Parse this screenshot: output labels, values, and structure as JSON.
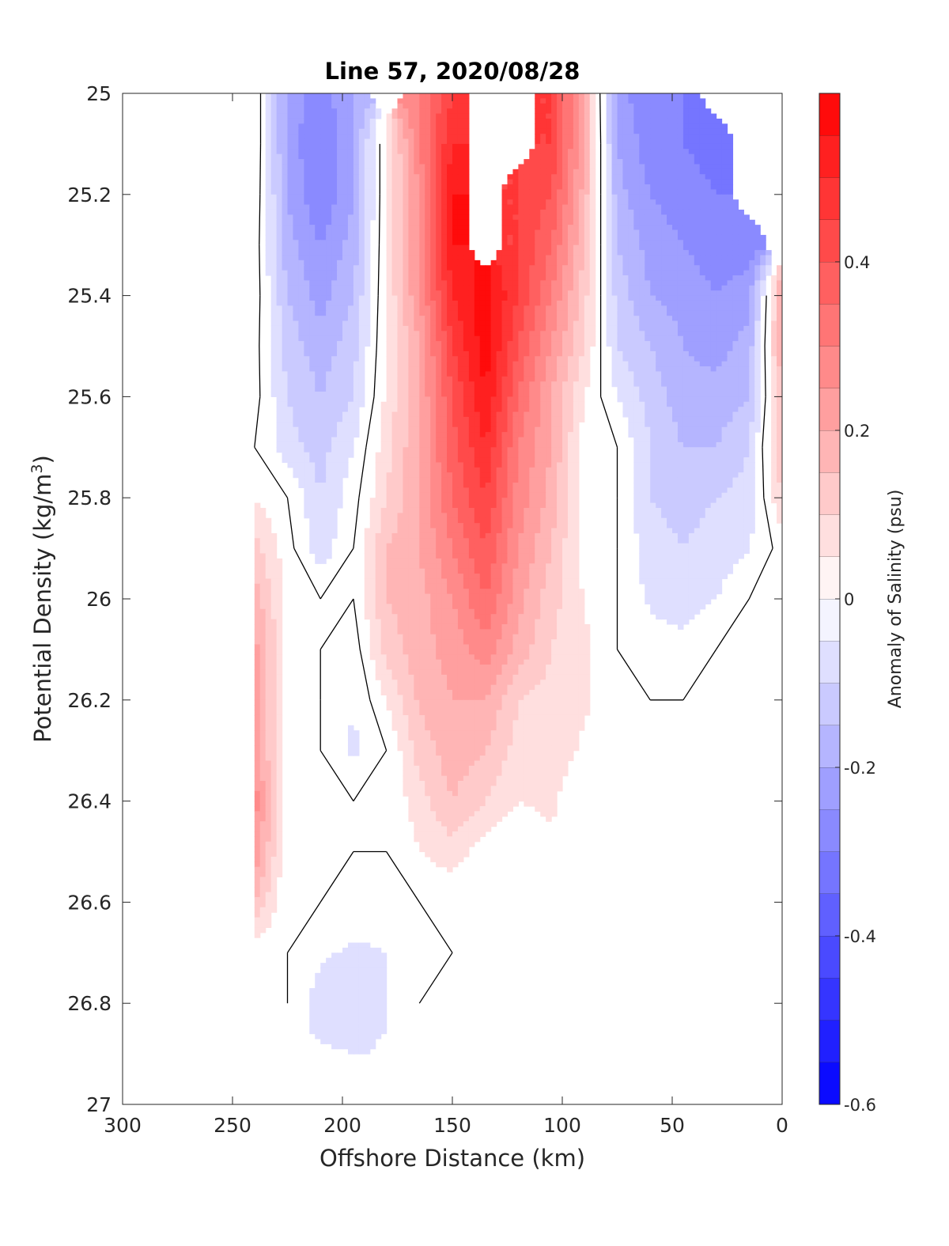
{
  "chart_data": {
    "type": "heatmap",
    "subtype": "filled contour section",
    "title": "Line 57, 2020/08/28",
    "xlabel": "Offshore Distance (km)",
    "ylabel": "Potential Density (kg/m",
    "ylabel_superscript": "3",
    "ylabel_suffix": ")",
    "colorbar_label": "Anomaly of Salinity (psu)",
    "xlim": [
      300,
      0
    ],
    "x_reversed": true,
    "ylim": [
      25,
      27
    ],
    "y_reversed": true,
    "x_ticks": [
      "300",
      "250",
      "200",
      "150",
      "100",
      "50",
      "0"
    ],
    "y_ticks": [
      "25",
      "25.2",
      "25.4",
      "25.6",
      "25.8",
      "26",
      "26.2",
      "26.4",
      "26.6",
      "26.8",
      "27"
    ],
    "colorbar_range": [
      -0.6,
      0.6
    ],
    "colorbar_ticks": [
      "-0.6",
      "-0.4",
      "-0.2",
      "0",
      "0.2",
      "0.4"
    ],
    "colorbar_levels": 24,
    "colormap": {
      "negative": "#0000ff",
      "zero": "#ffffff",
      "positive": "#ff0000"
    },
    "zero_contour_color": "#000000",
    "grid": false,
    "nodes_x_km": [
      240,
      225,
      210,
      195,
      180,
      165,
      150,
      135,
      120,
      105,
      90,
      75,
      60,
      45,
      30,
      15,
      0
    ],
    "nodes_y_sigma": [
      25.0,
      25.1,
      25.2,
      25.3,
      25.4,
      25.5,
      25.6,
      25.7,
      25.8,
      25.9,
      26.0,
      26.1,
      26.2,
      26.3,
      26.4,
      26.5,
      26.6,
      26.7,
      26.8,
      26.9
    ],
    "salinity_anomaly_psu": [
      [
        0.05,
        -0.22,
        -0.28,
        -0.2,
        null,
        0.3,
        0.45,
        null,
        null,
        0.45,
        0.2,
        -0.22,
        -0.3,
        -0.3,
        null,
        null,
        null
      ],
      [
        0.05,
        -0.22,
        -0.3,
        -0.2,
        0.05,
        0.3,
        0.5,
        null,
        null,
        0.45,
        0.2,
        -0.2,
        -0.28,
        -0.3,
        -0.32,
        null,
        null
      ],
      [
        0.04,
        -0.2,
        -0.3,
        -0.2,
        0.05,
        0.25,
        0.55,
        null,
        0.45,
        0.4,
        0.18,
        -0.18,
        -0.25,
        -0.28,
        -0.3,
        null,
        null
      ],
      [
        0.03,
        -0.18,
        -0.25,
        -0.18,
        0.05,
        0.25,
        0.55,
        null,
        0.45,
        0.35,
        0.15,
        -0.15,
        -0.22,
        -0.25,
        -0.28,
        -0.28,
        null
      ],
      [
        0.03,
        -0.15,
        -0.22,
        -0.15,
        0.05,
        0.25,
        0.5,
        0.58,
        0.45,
        0.3,
        0.12,
        -0.12,
        -0.2,
        -0.22,
        -0.25,
        -0.22,
        0.2
      ],
      [
        0.02,
        -0.12,
        -0.18,
        -0.12,
        0.05,
        0.2,
        0.45,
        0.58,
        0.4,
        0.25,
        0.1,
        -0.1,
        -0.15,
        -0.2,
        -0.22,
        -0.18,
        0.2
      ],
      [
        0.02,
        -0.1,
        -0.15,
        -0.1,
        0.06,
        0.2,
        0.4,
        0.55,
        0.35,
        0.2,
        0.05,
        -0.05,
        -0.12,
        -0.18,
        -0.18,
        -0.15,
        0.15
      ],
      [
        0.0,
        -0.08,
        -0.12,
        -0.05,
        0.08,
        0.2,
        0.38,
        0.5,
        0.3,
        0.2,
        0.02,
        0.0,
        -0.1,
        -0.15,
        -0.15,
        -0.1,
        0.15
      ],
      [
        0.05,
        0.0,
        -0.1,
        -0.02,
        0.1,
        0.2,
        0.35,
        0.45,
        0.28,
        0.18,
        0.02,
        0.0,
        -0.1,
        -0.12,
        -0.1,
        -0.08,
        0.1
      ],
      [
        0.12,
        0.02,
        -0.08,
        0.0,
        0.15,
        0.2,
        0.3,
        0.4,
        0.25,
        0.15,
        0.02,
        0.0,
        -0.08,
        -0.1,
        -0.08,
        -0.05,
        0.02
      ],
      [
        0.18,
        0.03,
        0.0,
        0.0,
        0.15,
        0.18,
        0.25,
        0.35,
        0.22,
        0.12,
        0.05,
        0.0,
        -0.06,
        -0.08,
        -0.05,
        0.0,
        0.0
      ],
      [
        0.22,
        0.03,
        0.0,
        -0.03,
        0.12,
        0.18,
        0.22,
        0.28,
        0.18,
        0.1,
        0.06,
        0.0,
        -0.02,
        -0.03,
        0.0,
        0.0,
        0.0
      ],
      [
        0.25,
        0.0,
        0.0,
        -0.05,
        0.05,
        0.16,
        0.2,
        0.2,
        0.1,
        0.08,
        0.06,
        0.0,
        0.0,
        0.0,
        0.0,
        0.0,
        0.0
      ],
      [
        0.25,
        0.0,
        0.0,
        -0.06,
        0.0,
        0.12,
        0.18,
        0.15,
        0.08,
        0.08,
        0.04,
        0.0,
        0.0,
        0.0,
        0.0,
        0.0,
        0.0
      ],
      [
        0.28,
        0.0,
        0.0,
        0.0,
        0.0,
        0.08,
        0.15,
        0.1,
        0.05,
        0.06,
        0.0,
        0.0,
        0.0,
        0.0,
        0.0,
        0.0,
        0.0
      ],
      [
        0.25,
        0.0,
        0.0,
        0.0,
        0.0,
        0.05,
        0.08,
        0.02,
        0.0,
        0.04,
        0.0,
        0.0,
        0.0,
        0.0,
        0.0,
        0.0,
        0.0
      ],
      [
        0.15,
        0.0,
        0.0,
        -0.02,
        -0.02,
        0.0,
        0.0,
        0.0,
        0.0,
        0.05,
        0.0,
        0.0,
        0.0,
        0.0,
        0.0,
        0.0,
        0.0
      ],
      [
        0.02,
        0.0,
        -0.04,
        -0.06,
        -0.05,
        -0.02,
        0.0,
        0.0,
        0.0,
        0.05,
        0.0,
        0.0,
        0.0,
        0.0,
        0.0,
        0.0,
        0.0
      ],
      [
        0.05,
        0.0,
        -0.08,
        -0.1,
        -0.05,
        0.0,
        0.0,
        0.0,
        0.0,
        0.0,
        0.0,
        0.0,
        0.0,
        0.0,
        0.0,
        0.0,
        0.0
      ],
      [
        null,
        null,
        -0.04,
        -0.05,
        null,
        0.0,
        0.0,
        0.0,
        0.0,
        null,
        null,
        null,
        null,
        null,
        null,
        null,
        null
      ]
    ]
  }
}
